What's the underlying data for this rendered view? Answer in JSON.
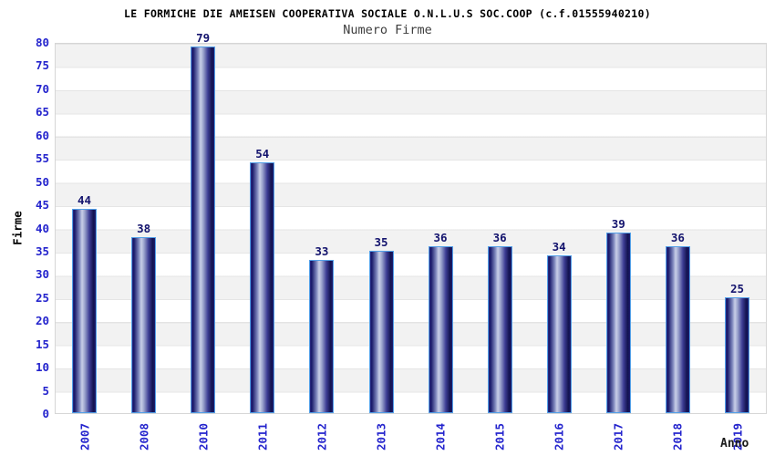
{
  "header": {
    "title": "LE FORMICHE DIE AMEISEN COOPERATIVA SOCIALE O.N.L.U.S SOC.COOP (c.f.01555940210)",
    "subtitle": "Numero Firme"
  },
  "chart_data": {
    "type": "bar",
    "title": "LE FORMICHE DIE AMEISEN COOPERATIVA SOCIALE O.N.L.U.S SOC.COOP (c.f.01555940210)",
    "subtitle": "Numero Firme",
    "xlabel": "Anno",
    "ylabel": "Firme",
    "categories": [
      "2007",
      "2008",
      "2010",
      "2011",
      "2012",
      "2013",
      "2014",
      "2015",
      "2016",
      "2017",
      "2018",
      "2019"
    ],
    "values": [
      44,
      38,
      79,
      54,
      33,
      35,
      36,
      36,
      34,
      39,
      36,
      25
    ],
    "ylim": [
      0,
      80
    ],
    "ytick_step": 5,
    "grid": "horizontal-stripes",
    "legend": "none",
    "colors": {
      "bar_dark": "#16166b",
      "bar_highlight": "#c9cfe8",
      "bar_outline": "#53a0e8",
      "tick_label": "#2424cd",
      "value_label": "#14146e",
      "stripe_gray": "#f2f2f2",
      "stripe_white": "#ffffff",
      "grid_line": "#e2e2e2",
      "plot_border": "#d6d6d6",
      "title_color": "#000000",
      "subtitle_color": "#3d3d3d"
    }
  }
}
